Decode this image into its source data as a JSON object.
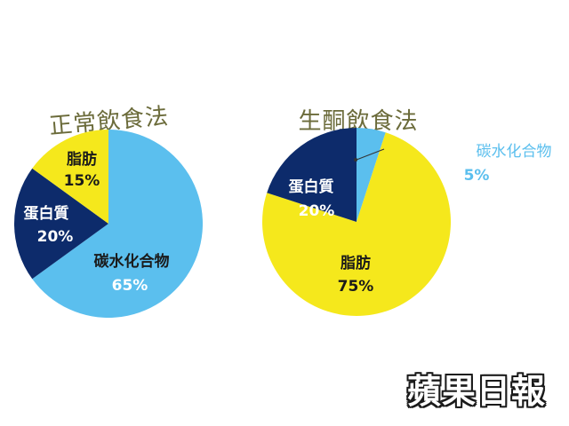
{
  "chart_data": [
    {
      "type": "pie",
      "title": "正常飲食法",
      "slices": [
        {
          "label": "碳水化合物",
          "value": 65,
          "value_label": "65%",
          "color": "#5bbfee"
        },
        {
          "label": "蛋白質",
          "value": 20,
          "value_label": "20%",
          "color": "#0d2b6b"
        },
        {
          "label": "脂肪",
          "value": 15,
          "value_label": "15%",
          "color": "#f5e81c"
        }
      ]
    },
    {
      "type": "pie",
      "title": "生酮飲食法",
      "slices": [
        {
          "label": "碳水化合物",
          "value": 5,
          "value_label": "5%",
          "color": "#5bbfee"
        },
        {
          "label": "脂肪",
          "value": 75,
          "value_label": "75%",
          "color": "#f5e81c"
        },
        {
          "label": "蛋白質",
          "value": 20,
          "value_label": "20%",
          "color": "#0d2b6b"
        }
      ]
    }
  ],
  "watermark": "蘋果日報"
}
